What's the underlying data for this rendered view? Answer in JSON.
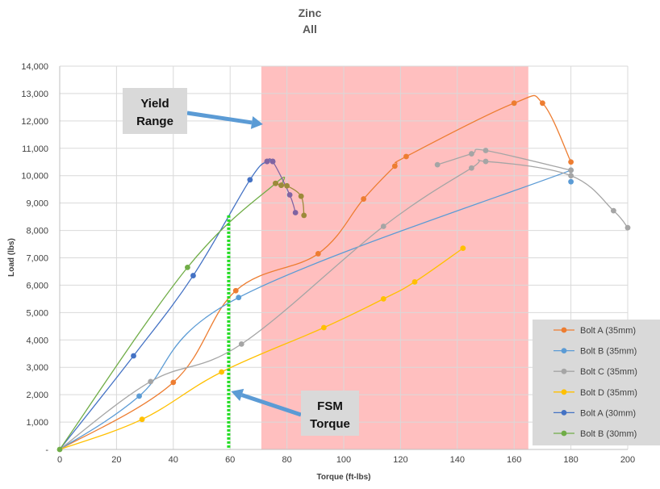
{
  "chart_data": {
    "type": "line",
    "title": "Zinc",
    "subtitle": "All",
    "xlabel": "Torque (ft-lbs)",
    "ylabel": "Load (lbs)",
    "xlim": [
      0,
      200
    ],
    "ylim": [
      0,
      14000
    ],
    "x_ticks": [
      "0",
      "20",
      "40",
      "60",
      "80",
      "100",
      "120",
      "140",
      "160",
      "180",
      "200"
    ],
    "y_ticks": [
      "-",
      "1,000",
      "2,000",
      "3,000",
      "4,000",
      "5,000",
      "6,000",
      "7,000",
      "8,000",
      "9,000",
      "10,000",
      "11,000",
      "12,000",
      "13,000",
      "14,000"
    ],
    "grid": "vertical and horizontal major",
    "legend_position": "bottom-right",
    "yield_range": {
      "x_start": 71,
      "x_end": 165,
      "color": "#ffbfbf"
    },
    "fsm_torque": {
      "x": 59.5,
      "y_top": 8550,
      "color": "#22dd22"
    },
    "annotations": [
      {
        "text_lines": [
          "Yield",
          "Range"
        ],
        "target": "yield_range"
      },
      {
        "text_lines": [
          "FSM",
          "Torque"
        ],
        "target": "fsm_torque"
      }
    ],
    "series": [
      {
        "name": "Bolt A (35mm)",
        "color": "#ed7d31",
        "points": [
          [
            0,
            0
          ],
          [
            40,
            2450
          ],
          [
            62,
            5800
          ],
          [
            91,
            7150
          ],
          [
            107,
            9150
          ],
          [
            118,
            10350
          ],
          [
            122,
            10700
          ],
          [
            160,
            12650
          ],
          [
            170,
            12650
          ],
          [
            180,
            10500
          ]
        ]
      },
      {
        "name": "Bolt B (35mm)",
        "color": "#5b9bd5",
        "points": [
          [
            0,
            0
          ],
          [
            28,
            1950
          ],
          [
            63,
            5550
          ],
          [
            180,
            10200
          ]
        ]
      },
      {
        "name": "Bolt C (35mm)",
        "color": "#a5a5a5",
        "points": [
          [
            0,
            0
          ],
          [
            32,
            2480
          ],
          [
            64,
            3850
          ],
          [
            114,
            8150
          ],
          [
            145,
            10280
          ],
          [
            150,
            10520
          ],
          [
            180,
            10000
          ],
          [
            195,
            8720
          ],
          [
            200,
            8100
          ]
        ]
      },
      {
        "name": "Bolt D (35mm)",
        "color": "#ffc000",
        "points": [
          [
            0,
            0
          ],
          [
            29,
            1100
          ],
          [
            57,
            2830
          ],
          [
            93,
            4450
          ],
          [
            114,
            5500
          ],
          [
            125,
            6120
          ],
          [
            142,
            7350
          ]
        ]
      },
      {
        "name": "Bolt A (30mm)",
        "color": "#4472c4",
        "points": [
          [
            0,
            0
          ],
          [
            26,
            3420
          ],
          [
            47,
            6350
          ],
          [
            67,
            9850
          ],
          [
            73,
            10520
          ],
          [
            75,
            10520
          ]
        ]
      },
      {
        "name": "Bolt B (30mm)",
        "color": "#70ad47",
        "points": [
          [
            0,
            0
          ],
          [
            45,
            6650
          ],
          [
            76,
            9720
          ],
          [
            78,
            9650
          ]
        ]
      }
    ],
    "extra_segments": [
      {
        "name": "Bolt B (35mm)",
        "color": "#5b9bd5",
        "points": [
          [
            180,
            9780
          ]
        ]
      },
      {
        "name": "Bolt C (35mm)",
        "color": "#a5a5a5",
        "points": [
          [
            133,
            10400
          ],
          [
            145,
            10800
          ],
          [
            150,
            10920
          ],
          [
            180,
            10200
          ]
        ]
      },
      {
        "name": "Bolt A (30mm)",
        "color": "#8064a2",
        "points": [
          [
            73,
            10520
          ],
          [
            75,
            10520
          ],
          [
            81,
            9300
          ],
          [
            83,
            8650
          ]
        ]
      },
      {
        "name": "Bolt B (30mm)",
        "color": "#9c8a3a",
        "points": [
          [
            76,
            9720
          ],
          [
            78,
            9650
          ],
          [
            80,
            9630
          ],
          [
            85,
            9250
          ],
          [
            86,
            8550
          ]
        ]
      }
    ]
  }
}
